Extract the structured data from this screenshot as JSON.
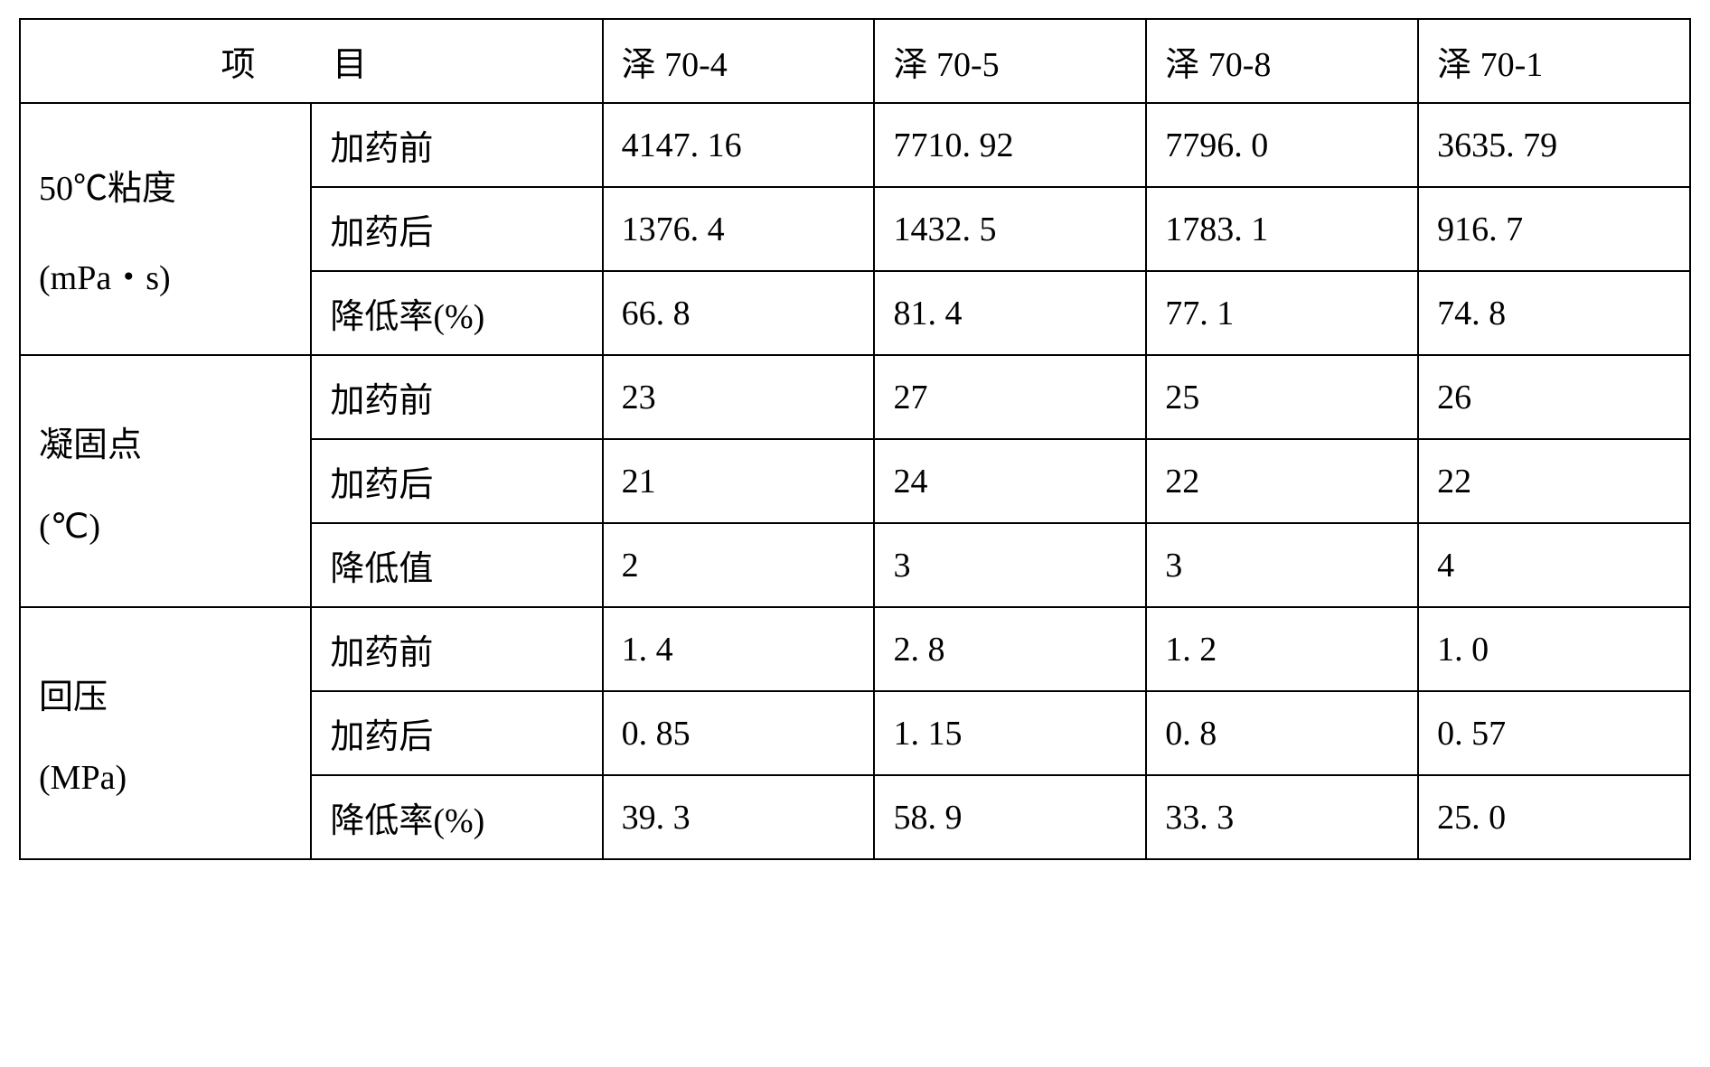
{
  "table": {
    "header": {
      "category_label": "项 目",
      "columns": [
        "泽 70-4",
        "泽 70-5",
        "泽 70-8",
        "泽 70-1"
      ]
    },
    "groups": [
      {
        "label_line1": "50℃粘度",
        "label_line2": "(mPa・s)",
        "rows": [
          {
            "sublabel": "加药前",
            "values": [
              "4147. 16",
              "7710. 92",
              "7796. 0",
              "3635. 79"
            ]
          },
          {
            "sublabel": "加药后",
            "values": [
              "1376. 4",
              "1432. 5",
              "1783. 1",
              "916. 7"
            ]
          },
          {
            "sublabel": "降低率(%)",
            "values": [
              "66. 8",
              "81. 4",
              "77. 1",
              "74. 8"
            ]
          }
        ]
      },
      {
        "label_line1": "凝固点",
        "label_line2": "(℃)",
        "rows": [
          {
            "sublabel": "加药前",
            "values": [
              "23",
              "27",
              "25",
              "26"
            ]
          },
          {
            "sublabel": "加药后",
            "values": [
              "21",
              "24",
              "22",
              "22"
            ]
          },
          {
            "sublabel": "降低值",
            "values": [
              "2",
              "3",
              "3",
              "4"
            ]
          }
        ]
      },
      {
        "label_line1": "回压",
        "label_line2": "(MPa)",
        "rows": [
          {
            "sublabel": "加药前",
            "values": [
              "1. 4",
              "2. 8",
              "1. 2",
              "1. 0"
            ]
          },
          {
            "sublabel": "加药后",
            "values": [
              "0. 85",
              "1. 15",
              "0. 8",
              "0. 57"
            ]
          },
          {
            "sublabel": "降低率(%)",
            "values": [
              "39. 3",
              "58. 9",
              "33. 3",
              "25. 0"
            ]
          }
        ]
      }
    ]
  },
  "styling": {
    "border_color": "#000000",
    "border_width": 2,
    "background_color": "#ffffff",
    "text_color": "#000000",
    "font_family": "SimSun",
    "font_size": 38,
    "cell_padding": "18px 20px"
  }
}
